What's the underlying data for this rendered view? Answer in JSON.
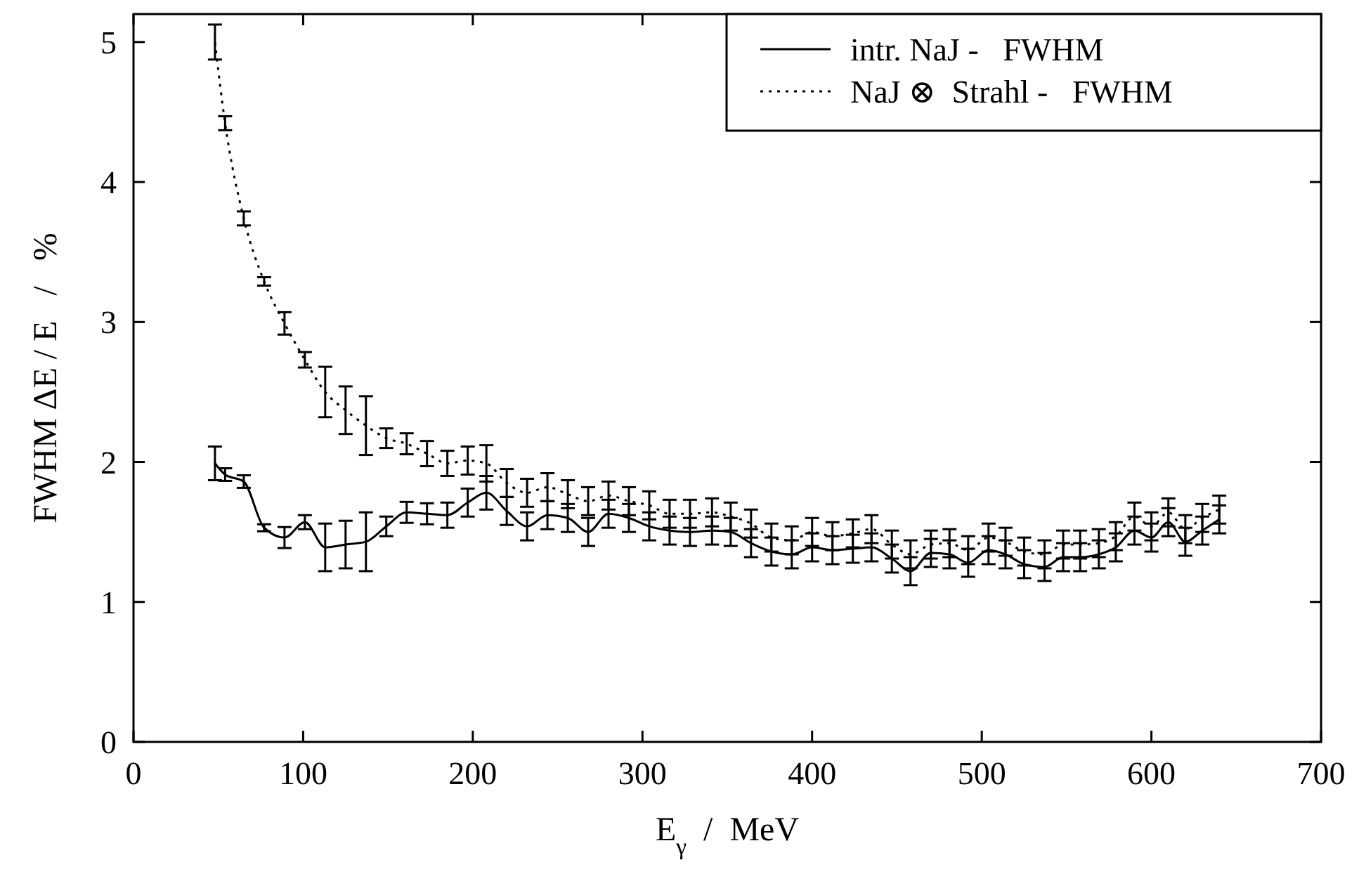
{
  "chart_data": {
    "type": "line",
    "xlabel": "E$_{γ}$  /  MeV",
    "ylabel": "FWHM ΔE / E   /   %",
    "xlim": [
      0,
      700
    ],
    "ylim": [
      0,
      5.2
    ],
    "xticks": [
      0,
      100,
      200,
      300,
      400,
      500,
      600,
      700
    ],
    "yticks": [
      0,
      1,
      2,
      3,
      4,
      5
    ],
    "grid": false,
    "legend": "top right",
    "x": [
      48,
      54,
      65,
      77,
      89,
      101,
      113,
      125,
      137,
      149,
      161,
      173,
      185,
      197,
      208,
      220,
      232,
      244,
      256,
      268,
      280,
      292,
      304,
      316,
      328,
      341,
      352,
      364,
      376,
      388,
      400,
      412,
      424,
      435,
      447,
      458,
      470,
      481,
      492,
      504,
      514,
      525,
      537,
      548,
      558,
      569,
      579,
      590,
      600,
      610,
      620,
      630,
      640
    ],
    "series": [
      {
        "name": "intr. NaJ -   FWHM",
        "color": "#000000",
        "line_style": "solid",
        "values": [
          1.99,
          1.91,
          1.86,
          1.53,
          1.46,
          1.57,
          1.39,
          1.41,
          1.43,
          1.54,
          1.64,
          1.63,
          1.62,
          1.71,
          1.78,
          1.65,
          1.54,
          1.62,
          1.6,
          1.5,
          1.63,
          1.6,
          1.54,
          1.51,
          1.5,
          1.51,
          1.5,
          1.42,
          1.36,
          1.34,
          1.39,
          1.37,
          1.38,
          1.39,
          1.31,
          1.22,
          1.35,
          1.34,
          1.28,
          1.37,
          1.34,
          1.27,
          1.25,
          1.32,
          1.32,
          1.34,
          1.39,
          1.51,
          1.46,
          1.57,
          1.43,
          1.51,
          1.59
        ],
        "errors": [
          0.12,
          0.045,
          0.045,
          0.025,
          0.075,
          0.05,
          0.17,
          0.17,
          0.21,
          0.07,
          0.075,
          0.075,
          0.09,
          0.1,
          0.12,
          0.1,
          0.1,
          0.1,
          0.1,
          0.1,
          0.1,
          0.1,
          0.1,
          0.1,
          0.1,
          0.1,
          0.1,
          0.1,
          0.1,
          0.1,
          0.1,
          0.1,
          0.1,
          0.1,
          0.1,
          0.1,
          0.1,
          0.1,
          0.1,
          0.1,
          0.1,
          0.1,
          0.1,
          0.1,
          0.1,
          0.1,
          0.1,
          0.1,
          0.1,
          0.1,
          0.1,
          0.1,
          0.1
        ]
      },
      {
        "name": "NaJ ⊗  Strahl -   FWHM",
        "color": "#000000",
        "line_style": "dotted",
        "values": [
          5.0,
          4.42,
          3.74,
          3.29,
          2.99,
          2.73,
          2.5,
          2.37,
          2.26,
          2.17,
          2.13,
          2.06,
          1.99,
          2.01,
          1.99,
          1.85,
          1.78,
          1.82,
          1.77,
          1.72,
          1.76,
          1.72,
          1.69,
          1.63,
          1.63,
          1.64,
          1.61,
          1.56,
          1.46,
          1.44,
          1.5,
          1.47,
          1.49,
          1.52,
          1.41,
          1.34,
          1.41,
          1.42,
          1.37,
          1.46,
          1.43,
          1.36,
          1.34,
          1.41,
          1.41,
          1.42,
          1.47,
          1.61,
          1.54,
          1.64,
          1.52,
          1.6,
          1.66
        ],
        "errors": [
          0.125,
          0.05,
          0.05,
          0.03,
          0.08,
          0.055,
          0.18,
          0.17,
          0.21,
          0.07,
          0.075,
          0.09,
          0.09,
          0.1,
          0.13,
          0.1,
          0.1,
          0.1,
          0.1,
          0.1,
          0.1,
          0.1,
          0.1,
          0.1,
          0.1,
          0.1,
          0.1,
          0.1,
          0.1,
          0.1,
          0.1,
          0.1,
          0.1,
          0.1,
          0.1,
          0.1,
          0.1,
          0.1,
          0.1,
          0.1,
          0.1,
          0.1,
          0.1,
          0.1,
          0.1,
          0.1,
          0.1,
          0.1,
          0.1,
          0.1,
          0.1,
          0.1,
          0.1
        ]
      }
    ]
  }
}
